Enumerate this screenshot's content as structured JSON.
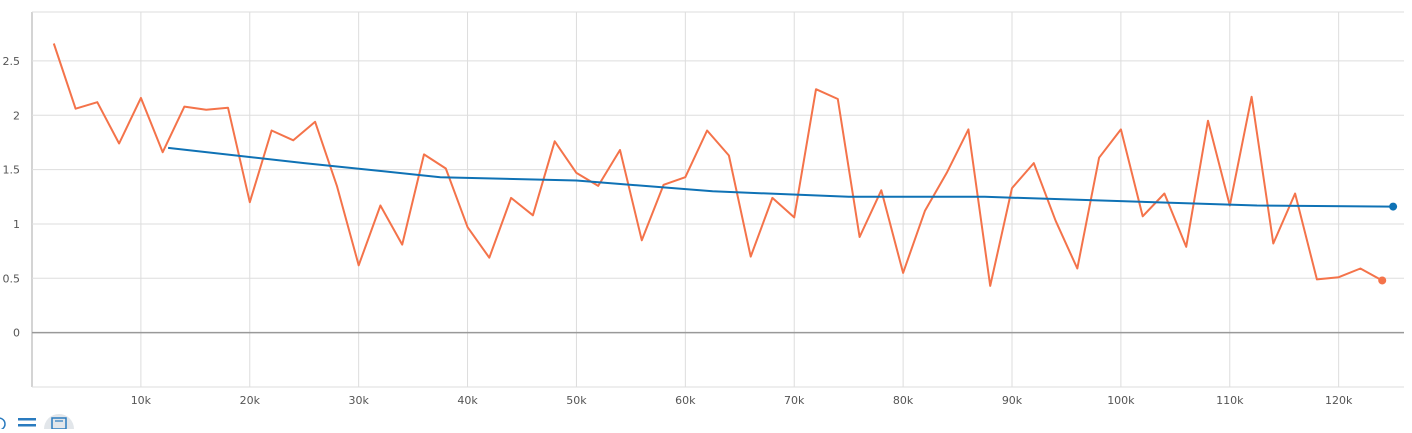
{
  "chart_data": {
    "type": "line",
    "title": "",
    "xlabel": "",
    "ylabel": "",
    "xlim": [
      0,
      126000
    ],
    "ylim": [
      -0.5,
      2.95
    ],
    "grid": true,
    "x_ticks": [
      10000,
      20000,
      30000,
      40000,
      50000,
      60000,
      70000,
      80000,
      90000,
      100000,
      110000,
      120000
    ],
    "x_tick_labels": [
      "10k",
      "20k",
      "30k",
      "40k",
      "50k",
      "60k",
      "70k",
      "80k",
      "90k",
      "100k",
      "110k",
      "120k"
    ],
    "y_ticks": [
      0,
      0.5,
      1,
      1.5,
      2,
      2.5
    ],
    "y_tick_labels": [
      "0",
      "0.5",
      "1",
      "1.5",
      "2",
      "2.5"
    ],
    "series": [
      {
        "color": "#f4734a",
        "x": [
          2000,
          4000,
          6000,
          8000,
          10000,
          12000,
          14000,
          16000,
          18000,
          20000,
          22000,
          24000,
          26000,
          28000,
          30000,
          32000,
          34000,
          36000,
          38000,
          40000,
          42000,
          44000,
          46000,
          48000,
          50000,
          52000,
          54000,
          56000,
          58000,
          60000,
          62000,
          64000,
          66000,
          68000,
          70000,
          72000,
          74000,
          76000,
          78000,
          80000,
          82000,
          84000,
          86000,
          88000,
          90000,
          92000,
          94000,
          96000,
          98000,
          100000,
          102000,
          104000,
          106000,
          108000,
          110000,
          112000,
          114000,
          116000,
          118000,
          120000,
          122000,
          124000
        ],
        "values": [
          2.66,
          2.06,
          2.12,
          1.74,
          2.16,
          1.66,
          2.08,
          2.05,
          2.07,
          1.2,
          1.86,
          1.77,
          1.94,
          1.35,
          0.62,
          1.17,
          0.81,
          1.64,
          1.51,
          0.97,
          0.69,
          1.24,
          1.08,
          1.76,
          1.47,
          1.35,
          1.68,
          0.85,
          1.36,
          1.43,
          1.86,
          1.63,
          0.7,
          1.24,
          1.06,
          2.24,
          2.15,
          0.88,
          1.31,
          0.55,
          1.12,
          1.47,
          1.87,
          0.43,
          1.33,
          1.56,
          1.03,
          0.59,
          1.61,
          1.87,
          1.07,
          1.28,
          0.79,
          1.95,
          1.17,
          2.17,
          0.82,
          1.28,
          0.49,
          0.51,
          0.59,
          0.48
        ]
      },
      {
        "color": "#0f72b5",
        "x": [
          12500,
          25000,
          37500,
          50000,
          62500,
          75000,
          87500,
          100000,
          112500,
          125000
        ],
        "values": [
          1.7,
          1.56,
          1.43,
          1.4,
          1.3,
          1.25,
          1.25,
          1.21,
          1.17,
          1.16
        ]
      }
    ]
  },
  "toolbar": {
    "buttons": [
      {
        "icon": "fit-domain-icon"
      },
      {
        "icon": "data-selection-icon"
      },
      {
        "icon": "download-icon"
      }
    ]
  },
  "colors": {
    "grid": "#dddddd",
    "zero_line": "#999999",
    "axis": "#aaaaaa"
  }
}
